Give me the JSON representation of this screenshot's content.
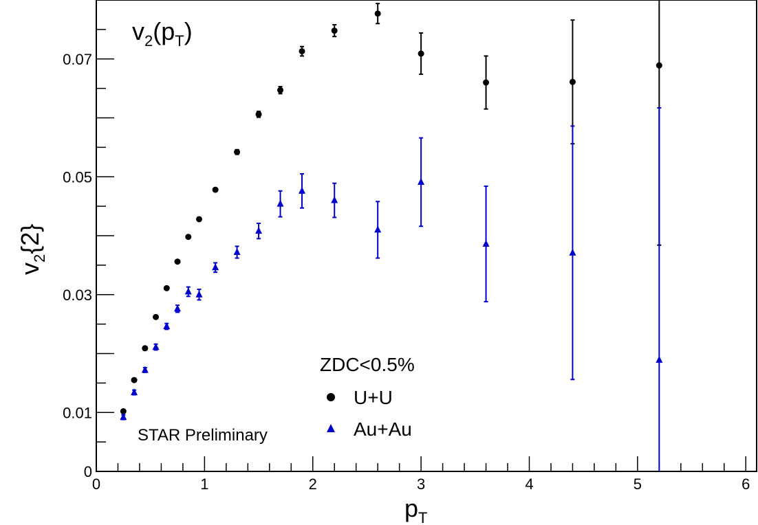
{
  "chart_data": {
    "type": "scatter",
    "plot_title": {
      "main": "v",
      "sub": "2",
      "paren_open": "(p",
      "sub2": "T",
      "paren_close": ")"
    },
    "xlabel": {
      "main": "p",
      "sub": "T"
    },
    "ylabel": {
      "main": "v",
      "sub": "2",
      "suffix": "{2}"
    },
    "xlim": [
      0,
      6.1
    ],
    "ylim": [
      0,
      0.08
    ],
    "x_ticks": [
      {
        "value": 0,
        "label": "0"
      },
      {
        "value": 1,
        "label": "1"
      },
      {
        "value": 2,
        "label": "2"
      },
      {
        "value": 3,
        "label": "3"
      },
      {
        "value": 4,
        "label": "4"
      },
      {
        "value": 5,
        "label": "5"
      },
      {
        "value": 6,
        "label": "6"
      }
    ],
    "y_ticks": [
      {
        "value": 0,
        "label": "0"
      },
      {
        "value": 0.01,
        "label": "0.01"
      },
      {
        "value": 0.03,
        "label": "0.03"
      },
      {
        "value": 0.05,
        "label": "0.05"
      },
      {
        "value": 0.07,
        "label": "0.07"
      }
    ],
    "legend_header": "ZDC<0.5%",
    "annotation": "STAR Preliminary",
    "series": [
      {
        "name": "U+U",
        "color": "#000000",
        "marker": "circle",
        "points": [
          {
            "x": 0.25,
            "y": 0.0102,
            "err": 0.0002
          },
          {
            "x": 0.35,
            "y": 0.0155,
            "err": 0.0002
          },
          {
            "x": 0.45,
            "y": 0.0209,
            "err": 0.0002
          },
          {
            "x": 0.55,
            "y": 0.0262,
            "err": 0.0002
          },
          {
            "x": 0.65,
            "y": 0.0311,
            "err": 0.0002
          },
          {
            "x": 0.75,
            "y": 0.0356,
            "err": 0.0002
          },
          {
            "x": 0.85,
            "y": 0.0398,
            "err": 0.0002
          },
          {
            "x": 0.95,
            "y": 0.0428,
            "err": 0.0003
          },
          {
            "x": 1.1,
            "y": 0.0478,
            "err": 0.0003
          },
          {
            "x": 1.3,
            "y": 0.0542,
            "err": 0.0004
          },
          {
            "x": 1.5,
            "y": 0.0606,
            "err": 0.0005
          },
          {
            "x": 1.7,
            "y": 0.0647,
            "err": 0.0006
          },
          {
            "x": 1.9,
            "y": 0.0713,
            "err": 0.0008
          },
          {
            "x": 2.2,
            "y": 0.0748,
            "err": 0.001
          },
          {
            "x": 2.6,
            "y": 0.0777,
            "err": 0.0017
          },
          {
            "x": 3.0,
            "y": 0.0709,
            "err": 0.0035
          },
          {
            "x": 3.6,
            "y": 0.066,
            "err": 0.0045
          },
          {
            "x": 4.4,
            "y": 0.0661,
            "err": 0.0105
          },
          {
            "x": 5.2,
            "y": 0.0689,
            "err": 0.0305
          }
        ]
      },
      {
        "name": "Au+Au",
        "color": "#0000cc",
        "marker": "triangle",
        "points": [
          {
            "x": 0.25,
            "y": 0.0092,
            "err": 0.0004
          },
          {
            "x": 0.35,
            "y": 0.0134,
            "err": 0.0004
          },
          {
            "x": 0.45,
            "y": 0.0172,
            "err": 0.0004
          },
          {
            "x": 0.55,
            "y": 0.0211,
            "err": 0.0005
          },
          {
            "x": 0.65,
            "y": 0.0246,
            "err": 0.0005
          },
          {
            "x": 0.75,
            "y": 0.0276,
            "err": 0.0006
          },
          {
            "x": 0.85,
            "y": 0.0305,
            "err": 0.0008
          },
          {
            "x": 0.95,
            "y": 0.03,
            "err": 0.0009
          },
          {
            "x": 1.1,
            "y": 0.0346,
            "err": 0.0008
          },
          {
            "x": 1.3,
            "y": 0.0372,
            "err": 0.001
          },
          {
            "x": 1.5,
            "y": 0.0408,
            "err": 0.0013
          },
          {
            "x": 1.7,
            "y": 0.0454,
            "err": 0.0022
          },
          {
            "x": 1.9,
            "y": 0.0476,
            "err": 0.0029
          },
          {
            "x": 2.2,
            "y": 0.046,
            "err": 0.0029
          },
          {
            "x": 2.6,
            "y": 0.041,
            "err": 0.0048
          },
          {
            "x": 3.0,
            "y": 0.0491,
            "err": 0.0075
          },
          {
            "x": 3.6,
            "y": 0.0386,
            "err": 0.0098
          },
          {
            "x": 4.4,
            "y": 0.0371,
            "err": 0.0215
          },
          {
            "x": 5.2,
            "y": 0.0189,
            "err": 0.0428
          }
        ]
      }
    ]
  }
}
